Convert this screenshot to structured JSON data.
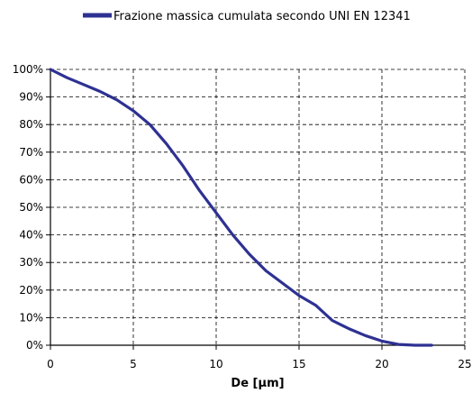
{
  "chart_data": {
    "type": "line",
    "title": "",
    "xlabel": "De [µm]",
    "ylabel": "",
    "xlim": [
      0,
      25
    ],
    "ylim": [
      0,
      100
    ],
    "x_ticks": [
      0,
      5,
      10,
      15,
      20,
      25
    ],
    "y_ticks": [
      0,
      10,
      20,
      30,
      40,
      50,
      60,
      70,
      80,
      90,
      100
    ],
    "x_tick_labels": [
      "0",
      "5",
      "10",
      "15",
      "20",
      "25"
    ],
    "y_tick_labels": [
      "0%",
      "10%",
      "20%",
      "30%",
      "40%",
      "50%",
      "60%",
      "70%",
      "80%",
      "90%",
      "100%"
    ],
    "grid": true,
    "grid_style": "dashed",
    "legend_position": "top",
    "series": [
      {
        "name": "Frazione massica cumulata secondo UNI EN 12341",
        "color": "#2e3192",
        "x": [
          0,
          1,
          2,
          3,
          4,
          5,
          6,
          7,
          8,
          9,
          10,
          11,
          12,
          13,
          14,
          15,
          16,
          17,
          18,
          19,
          20,
          21,
          22,
          23
        ],
        "y": [
          100,
          97,
          94.5,
          92,
          89,
          85,
          80,
          73,
          65,
          56,
          48,
          40,
          33,
          27,
          22.5,
          18,
          14.5,
          9,
          6,
          3.5,
          1.5,
          0.3,
          0,
          0
        ]
      }
    ]
  }
}
